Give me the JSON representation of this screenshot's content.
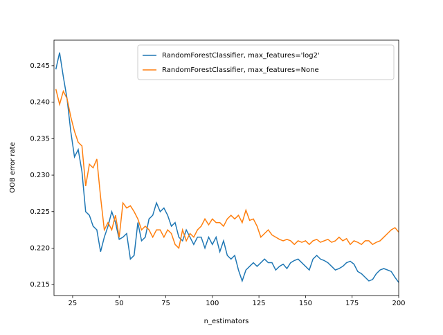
{
  "chart_data": {
    "type": "line",
    "xlabel": "n_estimators",
    "ylabel": "OOB error rate",
    "xlim": [
      15,
      200
    ],
    "ylim": [
      0.2135,
      0.2485
    ],
    "xticks": [
      25,
      50,
      75,
      100,
      125,
      150,
      175,
      200
    ],
    "yticks": [
      0.215,
      {
        "value": 0.22,
        "label": "0.220"
      },
      0.225,
      {
        "value": 0.23,
        "label": "0.230"
      },
      0.235,
      {
        "value": 0.24,
        "label": "0.240"
      },
      0.245
    ],
    "legend": "upper right",
    "x": [
      16,
      18,
      20,
      22,
      24,
      26,
      28,
      30,
      32,
      34,
      36,
      38,
      40,
      42,
      44,
      46,
      48,
      50,
      52,
      54,
      56,
      58,
      60,
      62,
      64,
      66,
      68,
      70,
      72,
      74,
      76,
      78,
      80,
      82,
      84,
      86,
      88,
      90,
      92,
      94,
      96,
      98,
      100,
      102,
      104,
      106,
      108,
      110,
      112,
      114,
      116,
      118,
      120,
      122,
      124,
      126,
      128,
      130,
      132,
      134,
      136,
      138,
      140,
      142,
      144,
      146,
      148,
      150,
      152,
      154,
      156,
      158,
      160,
      162,
      164,
      166,
      168,
      170,
      172,
      174,
      176,
      178,
      180,
      182,
      184,
      186,
      188,
      190,
      192,
      194,
      196,
      198,
      200
    ],
    "series": [
      {
        "name": "RandomForestClassifier, max_features='log2'",
        "color": "#1f77b4",
        "values": [
          0.2445,
          0.2468,
          0.2435,
          0.2405,
          0.236,
          0.2325,
          0.2335,
          0.2305,
          0.225,
          0.2245,
          0.223,
          0.2225,
          0.2195,
          0.2215,
          0.223,
          0.225,
          0.2235,
          0.2212,
          0.2215,
          0.222,
          0.2185,
          0.219,
          0.2235,
          0.221,
          0.2215,
          0.224,
          0.2245,
          0.2262,
          0.225,
          0.2255,
          0.2245,
          0.223,
          0.2235,
          0.2215,
          0.221,
          0.2225,
          0.2215,
          0.2205,
          0.2215,
          0.2215,
          0.22,
          0.2215,
          0.2205,
          0.2215,
          0.2195,
          0.221,
          0.219,
          0.2185,
          0.219,
          0.217,
          0.2155,
          0.217,
          0.2175,
          0.218,
          0.2175,
          0.218,
          0.2185,
          0.218,
          0.218,
          0.217,
          0.2175,
          0.2178,
          0.2172,
          0.218,
          0.2183,
          0.2185,
          0.218,
          0.2175,
          0.217,
          0.2185,
          0.219,
          0.2185,
          0.2183,
          0.218,
          0.2175,
          0.217,
          0.2172,
          0.2175,
          0.218,
          0.2182,
          0.2178,
          0.2168,
          0.2165,
          0.216,
          0.2155,
          0.2157,
          0.2165,
          0.217,
          0.2172,
          0.217,
          0.2168,
          0.216,
          0.2153
        ]
      },
      {
        "name": "RandomForestClassifier, max_features=None",
        "color": "#ff7f0e",
        "values": [
          0.2418,
          0.2397,
          0.2415,
          0.2405,
          0.238,
          0.236,
          0.2345,
          0.234,
          0.2285,
          0.2315,
          0.231,
          0.2322,
          0.227,
          0.2225,
          0.2235,
          0.2225,
          0.2245,
          0.2215,
          0.2262,
          0.2255,
          0.2258,
          0.225,
          0.224,
          0.2225,
          0.223,
          0.2225,
          0.2215,
          0.2225,
          0.2225,
          0.2215,
          0.2225,
          0.222,
          0.2205,
          0.22,
          0.2225,
          0.221,
          0.222,
          0.2215,
          0.2225,
          0.223,
          0.224,
          0.2232,
          0.224,
          0.2235,
          0.2235,
          0.223,
          0.224,
          0.2245,
          0.224,
          0.2245,
          0.2235,
          0.2252,
          0.2238,
          0.224,
          0.223,
          0.2215,
          0.222,
          0.2225,
          0.2218,
          0.2215,
          0.2212,
          0.221,
          0.2212,
          0.221,
          0.2205,
          0.221,
          0.2208,
          0.221,
          0.2205,
          0.221,
          0.2212,
          0.2208,
          0.221,
          0.2212,
          0.2208,
          0.221,
          0.2215,
          0.221,
          0.2213,
          0.2205,
          0.221,
          0.2208,
          0.2205,
          0.221,
          0.221,
          0.2205,
          0.2208,
          0.221,
          0.2215,
          0.222,
          0.2225,
          0.2228,
          0.2222
        ]
      }
    ]
  }
}
